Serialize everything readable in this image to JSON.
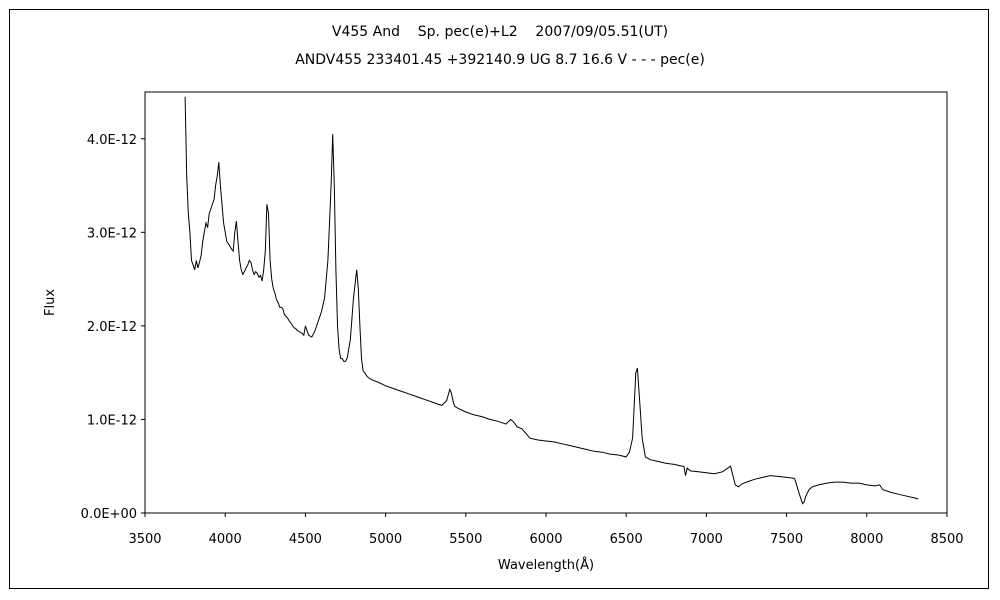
{
  "chart_data": {
    "type": "line",
    "title": "V455 And    Sp. pec(e)+L2    2007/09/05.51(UT)",
    "subtitle": "ANDV455 233401.45 +392140.9 UG 8.7 16.6 V - - - pec(e)",
    "xlabel": "Wavelength(Å)",
    "ylabel": "Flux",
    "xlim": [
      3500,
      8500
    ],
    "ylim": [
      0,
      4.5e-12
    ],
    "x_ticks": [
      3500,
      4000,
      4500,
      5000,
      5500,
      6000,
      6500,
      7000,
      7500,
      8000,
      8500
    ],
    "x_tick_labels": [
      "3500",
      "4000",
      "4500",
      "5000",
      "5500",
      "6000",
      "6500",
      "7000",
      "7500",
      "8000",
      "8500"
    ],
    "y_ticks": [
      0,
      1e-12,
      2e-12,
      3e-12,
      4e-12
    ],
    "y_tick_labels": [
      "0.0E+00",
      "1.0E-12",
      "2.0E-12",
      "3.0E-12",
      "4.0E-12"
    ],
    "grid": false,
    "legend": "none",
    "series": [
      {
        "color": "#000000",
        "x": [
          3750,
          3760,
          3770,
          3780,
          3790,
          3800,
          3810,
          3820,
          3830,
          3840,
          3850,
          3860,
          3870,
          3880,
          3890,
          3900,
          3910,
          3920,
          3930,
          3940,
          3950,
          3960,
          3970,
          3980,
          3990,
          4000,
          4010,
          4020,
          4030,
          4040,
          4050,
          4060,
          4070,
          4080,
          4090,
          4100,
          4110,
          4120,
          4130,
          4140,
          4150,
          4160,
          4170,
          4180,
          4190,
          4200,
          4210,
          4220,
          4230,
          4240,
          4250,
          4260,
          4270,
          4280,
          4290,
          4300,
          4310,
          4320,
          4330,
          4340,
          4350,
          4360,
          4370,
          4380,
          4390,
          4400,
          4410,
          4420,
          4430,
          4440,
          4450,
          4460,
          4470,
          4480,
          4490,
          4500,
          4520,
          4540,
          4560,
          4580,
          4600,
          4620,
          4640,
          4660,
          4670,
          4680,
          4690,
          4700,
          4710,
          4720,
          4730,
          4740,
          4750,
          4760,
          4780,
          4800,
          4820,
          4830,
          4840,
          4850,
          4860,
          4870,
          4880,
          4890,
          4900,
          4920,
          4950,
          5000,
          5050,
          5100,
          5150,
          5200,
          5250,
          5300,
          5350,
          5380,
          5400,
          5410,
          5420,
          5430,
          5450,
          5500,
          5550,
          5600,
          5650,
          5700,
          5750,
          5780,
          5800,
          5820,
          5850,
          5900,
          5950,
          6000,
          6050,
          6100,
          6150,
          6200,
          6250,
          6300,
          6350,
          6400,
          6450,
          6500,
          6520,
          6540,
          6550,
          6560,
          6570,
          6580,
          6600,
          6620,
          6650,
          6700,
          6750,
          6800,
          6850,
          6860,
          6870,
          6880,
          6900,
          6950,
          7000,
          7050,
          7100,
          7150,
          7180,
          7200,
          7220,
          7250,
          7300,
          7350,
          7400,
          7450,
          7500,
          7550,
          7580,
          7600,
          7610,
          7620,
          7640,
          7660,
          7700,
          7750,
          7800,
          7850,
          7900,
          7950,
          8000,
          8050,
          8080,
          8100,
          8150,
          8200,
          8250,
          8300,
          8320
        ],
        "values": [
          4.45e-12,
          3.6e-12,
          3.2e-12,
          3e-12,
          2.7e-12,
          2.65e-12,
          2.6e-12,
          2.7e-12,
          2.62e-12,
          2.68e-12,
          2.75e-12,
          2.9e-12,
          3e-12,
          3.1e-12,
          3.05e-12,
          3.2e-12,
          3.25e-12,
          3.3e-12,
          3.35e-12,
          3.5e-12,
          3.6e-12,
          3.75e-12,
          3.5e-12,
          3.3e-12,
          3.1e-12,
          3e-12,
          2.9e-12,
          2.88e-12,
          2.85e-12,
          2.82e-12,
          2.8e-12,
          3e-12,
          3.12e-12,
          2.9e-12,
          2.7e-12,
          2.6e-12,
          2.55e-12,
          2.58e-12,
          2.62e-12,
          2.65e-12,
          2.7e-12,
          2.68e-12,
          2.6e-12,
          2.55e-12,
          2.58e-12,
          2.56e-12,
          2.52e-12,
          2.54e-12,
          2.48e-12,
          2.6e-12,
          2.8e-12,
          3.3e-12,
          3.2e-12,
          2.7e-12,
          2.5e-12,
          2.4e-12,
          2.35e-12,
          2.28e-12,
          2.25e-12,
          2.2e-12,
          2.2e-12,
          2.18e-12,
          2.12e-12,
          2.1e-12,
          2.08e-12,
          2.05e-12,
          2.03e-12,
          2e-12,
          1.98e-12,
          1.97e-12,
          1.95e-12,
          1.94e-12,
          1.93e-12,
          1.92e-12,
          1.9e-12,
          2e-12,
          1.9e-12,
          1.88e-12,
          1.95e-12,
          2.05e-12,
          2.15e-12,
          2.3e-12,
          2.7e-12,
          3.5e-12,
          4.05e-12,
          3.5e-12,
          2.6e-12,
          2e-12,
          1.75e-12,
          1.65e-12,
          1.65e-12,
          1.62e-12,
          1.62e-12,
          1.65e-12,
          1.85e-12,
          2.3e-12,
          2.6e-12,
          2.4e-12,
          2e-12,
          1.65e-12,
          1.52e-12,
          1.5e-12,
          1.47e-12,
          1.45e-12,
          1.44e-12,
          1.42e-12,
          1.4e-12,
          1.36e-12,
          1.33e-12,
          1.3e-12,
          1.27e-12,
          1.24e-12,
          1.21e-12,
          1.18e-12,
          1.15e-12,
          1.2e-12,
          1.32e-12,
          1.28e-12,
          1.2e-12,
          1.14e-12,
          1.12e-12,
          1.08e-12,
          1.05e-12,
          1.03e-12,
          1e-12,
          9.8e-13,
          9.5e-13,
          1e-12,
          9.7e-13,
          9.2e-13,
          9e-13,
          8e-13,
          7.8e-13,
          7.7e-13,
          7.6e-13,
          7.4e-13,
          7.2e-13,
          7e-13,
          6.8e-13,
          6.6e-13,
          6.5e-13,
          6.3e-13,
          6.2e-13,
          6e-13,
          6.5e-13,
          8e-13,
          1.15e-12,
          1.5e-12,
          1.55e-12,
          1.3e-12,
          8e-13,
          6e-13,
          5.7e-13,
          5.5e-13,
          5.3e-13,
          5.2e-13,
          5e-13,
          5e-13,
          4e-13,
          4.8e-13,
          4.5e-13,
          4.4e-13,
          4.3e-13,
          4.2e-13,
          4.4e-13,
          5e-13,
          3e-13,
          2.8e-13,
          3.1e-13,
          3.3e-13,
          3.6e-13,
          3.8e-13,
          4e-13,
          3.9e-13,
          3.8e-13,
          3.7e-13,
          2e-13,
          1e-13,
          1.2e-13,
          1.8e-13,
          2.5e-13,
          2.8e-13,
          3e-13,
          3.2e-13,
          3.3e-13,
          3.3e-13,
          3.2e-13,
          3.2e-13,
          3e-13,
          2.9e-13,
          3e-13,
          2.5e-13,
          2.2e-13,
          2e-13,
          1.8e-13,
          1.6e-13,
          1.5e-13
        ]
      }
    ]
  }
}
